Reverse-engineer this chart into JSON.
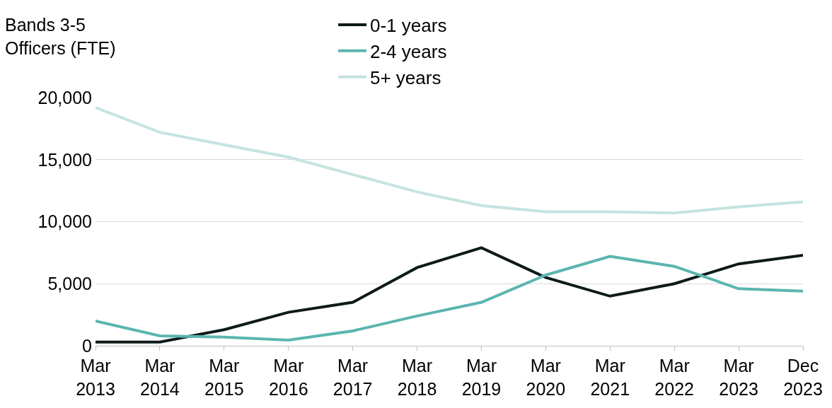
{
  "chart_data": {
    "type": "line",
    "ylabel": "Bands 3-5\nOfficers (FTE)",
    "categories": [
      "Mar\n2013",
      "Mar\n2014",
      "Mar\n2015",
      "Mar\n2016",
      "Mar\n2017",
      "Mar\n2018",
      "Mar\n2019",
      "Mar\n2020",
      "Mar\n2021",
      "Mar\n2022",
      "Mar\n2023",
      "Dec\n2023"
    ],
    "series": [
      {
        "name": "0-1 years",
        "color": "#0d1a1a",
        "values": [
          300,
          300,
          1300,
          2700,
          3500,
          6300,
          7900,
          5500,
          4000,
          5000,
          6600,
          7300
        ]
      },
      {
        "name": "2-4 years",
        "color": "#5bb5b0",
        "values": [
          2000,
          800,
          700,
          450,
          1200,
          2400,
          3500,
          5700,
          7200,
          6400,
          4600,
          4400
        ]
      },
      {
        "name": "5+ years",
        "color": "#c5e3e1",
        "values": [
          19200,
          17200,
          16200,
          15200,
          13800,
          12400,
          11300,
          10800,
          10800,
          10700,
          11200,
          11600
        ]
      }
    ],
    "ylim": [
      0,
      20000
    ],
    "yticks": [
      {
        "value": 0,
        "label": "0"
      },
      {
        "value": 5000,
        "label": "5,000"
      },
      {
        "value": 10000,
        "label": "10,000"
      },
      {
        "value": 15000,
        "label": "15,000"
      },
      {
        "value": 20000,
        "label": "20,000"
      }
    ],
    "grid": "y",
    "legend": "top",
    "marker": "none",
    "line_style": "solid"
  }
}
